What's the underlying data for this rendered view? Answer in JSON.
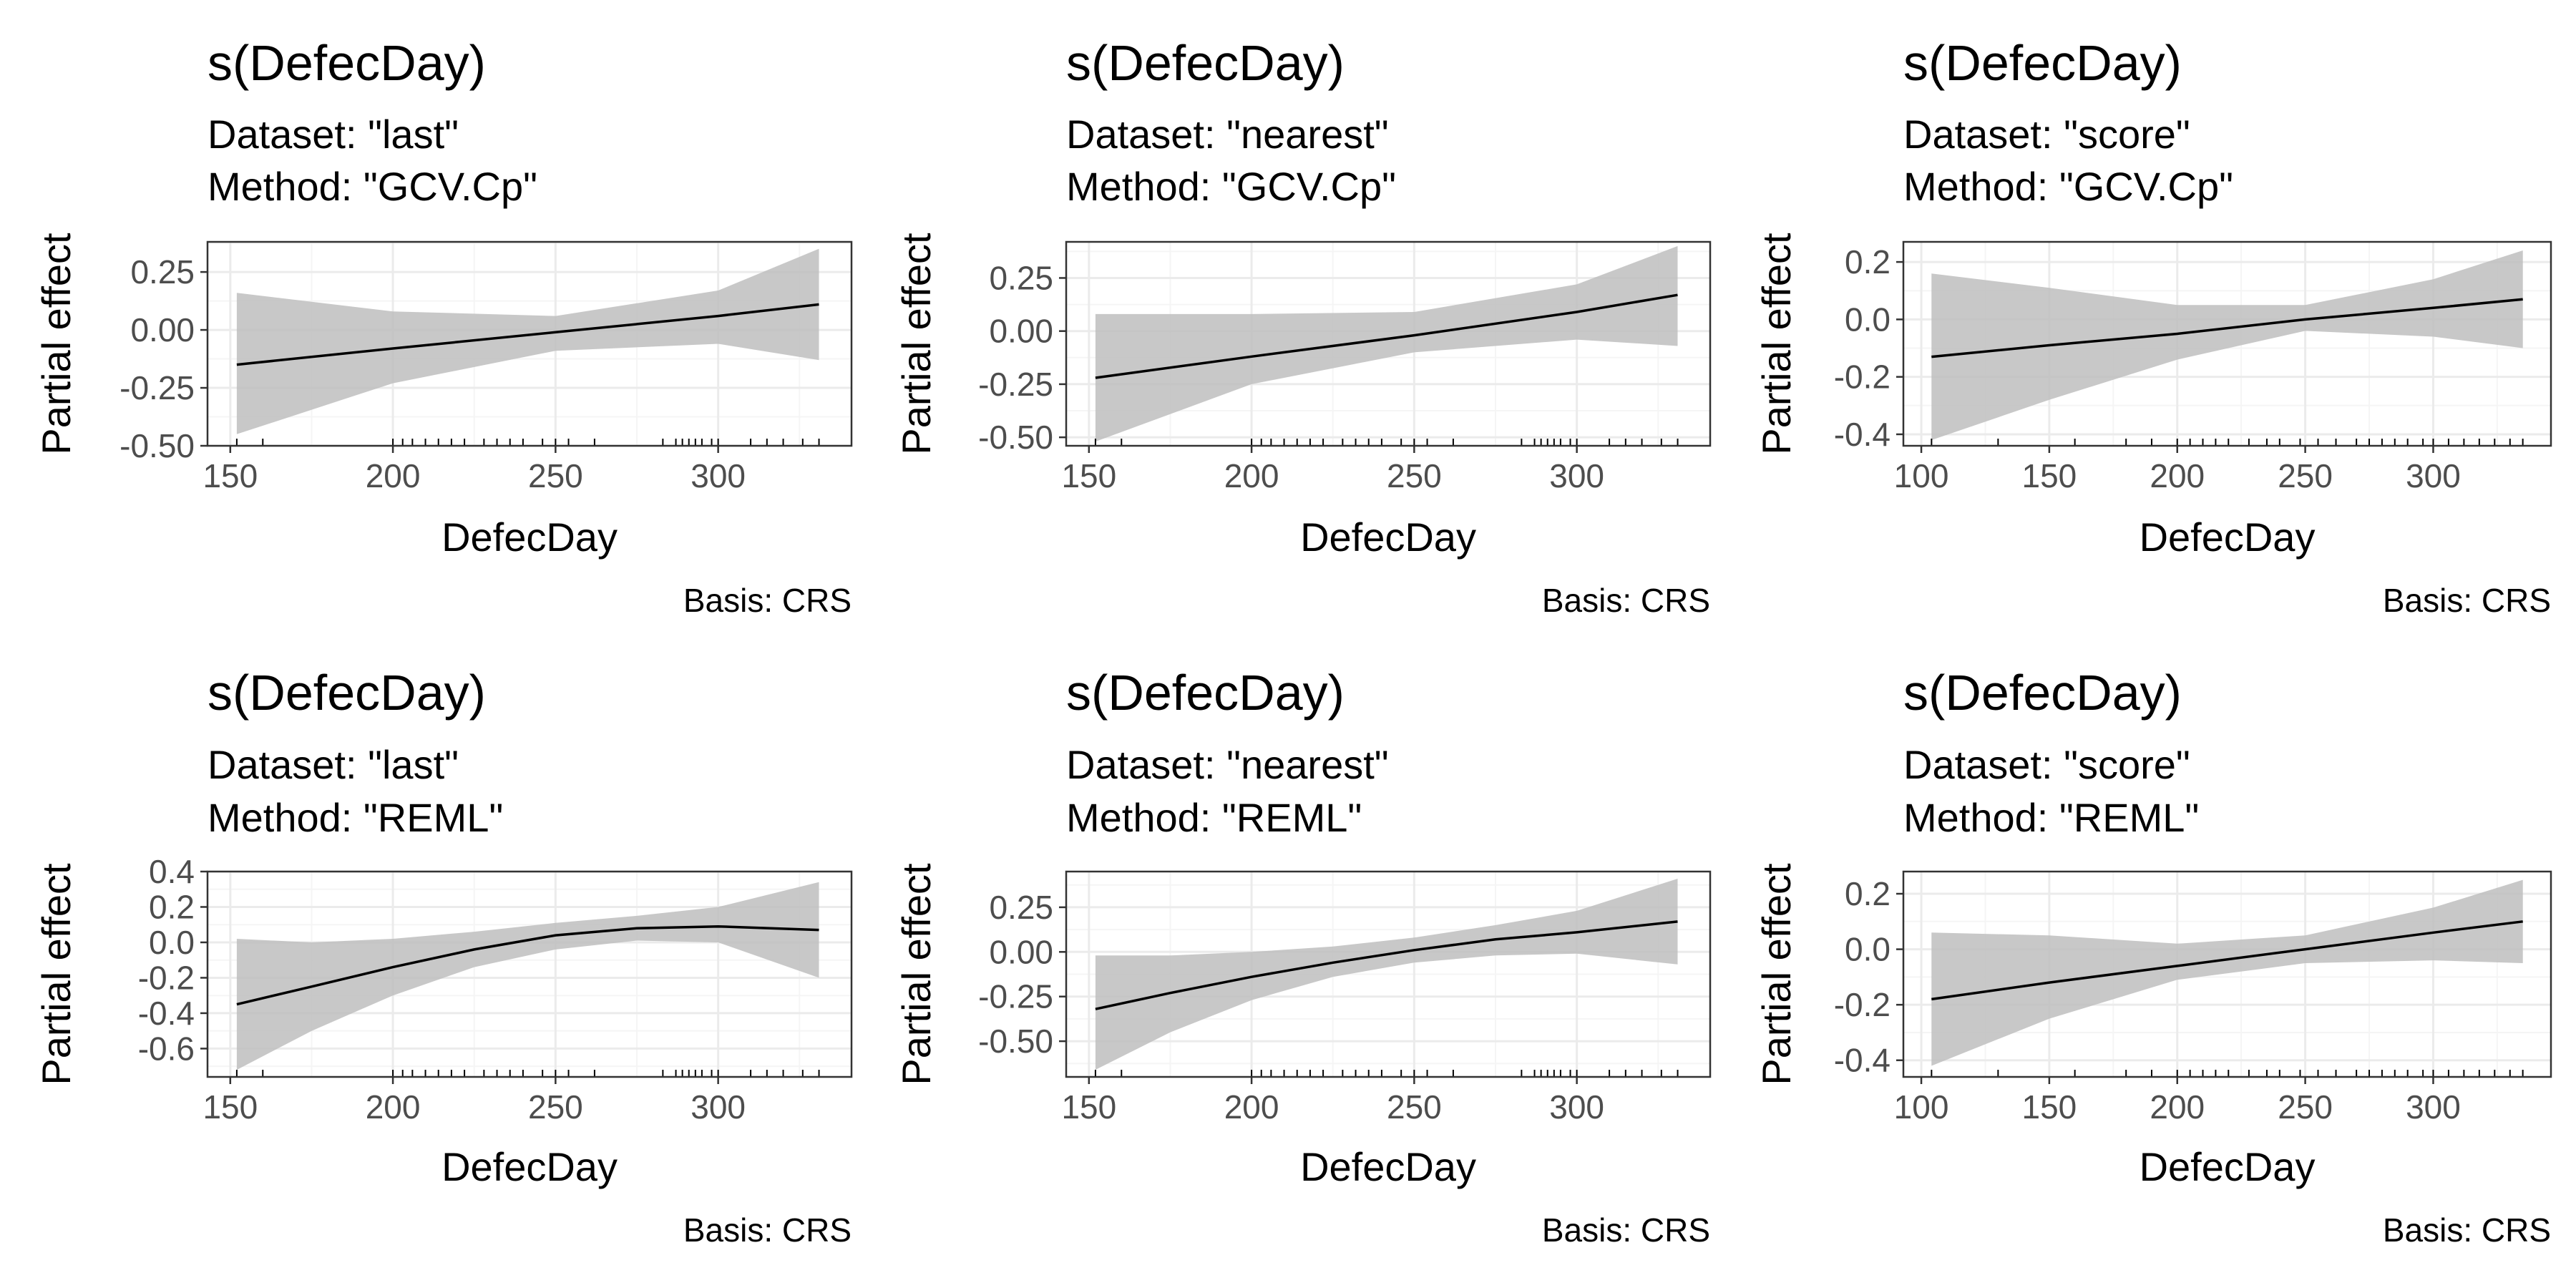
{
  "chart_data": [
    {
      "type": "line",
      "title": "s(DefecDay)",
      "subtitle": [
        "Dataset: \"last\"",
        "Method: \"GCV.Cp\""
      ],
      "xlabel": "DefecDay",
      "ylabel": "Partial effect",
      "caption": "Basis: CRS",
      "xlim": [
        143,
        341
      ],
      "ylim": [
        -0.5,
        0.38
      ],
      "xticks": [
        150,
        200,
        250,
        300
      ],
      "yticks": [
        -0.5,
        -0.25,
        0,
        0.25
      ],
      "ytick_labels": [
        "-0.50",
        "-0.25",
        "0.00",
        "0.25"
      ],
      "x": [
        152,
        200,
        250,
        300,
        331
      ],
      "y": [
        -0.15,
        -0.08,
        -0.01,
        0.06,
        0.11
      ],
      "lower": [
        -0.45,
        -0.23,
        -0.09,
        -0.06,
        -0.13
      ],
      "upper": [
        0.16,
        0.08,
        0.06,
        0.17,
        0.35
      ],
      "rug": [
        152,
        160,
        200,
        203,
        206,
        210,
        214,
        218,
        222,
        228,
        232,
        236,
        240,
        246,
        250,
        254,
        262,
        283,
        287,
        289,
        291,
        293,
        295,
        298,
        300,
        310,
        315,
        320,
        326,
        331
      ]
    },
    {
      "type": "line",
      "title": "s(DefecDay)",
      "subtitle": [
        "Dataset: \"nearest\"",
        "Method: \"GCV.Cp\""
      ],
      "xlabel": "DefecDay",
      "ylabel": "Partial effect",
      "caption": "Basis: CRS",
      "xlim": [
        143,
        341
      ],
      "ylim": [
        -0.54,
        0.42
      ],
      "xticks": [
        150,
        200,
        250,
        300
      ],
      "yticks": [
        -0.5,
        -0.25,
        0,
        0.25
      ],
      "ytick_labels": [
        "-0.50",
        "-0.25",
        "0.00",
        "0.25"
      ],
      "x": [
        152,
        200,
        250,
        300,
        331
      ],
      "y": [
        -0.22,
        -0.12,
        -0.02,
        0.09,
        0.17
      ],
      "lower": [
        -0.52,
        -0.25,
        -0.1,
        -0.04,
        -0.07
      ],
      "upper": [
        0.08,
        0.08,
        0.09,
        0.22,
        0.4
      ],
      "rug": [
        152,
        160,
        200,
        203,
        206,
        210,
        214,
        218,
        222,
        228,
        232,
        236,
        240,
        246,
        250,
        254,
        262,
        283,
        287,
        289,
        291,
        293,
        295,
        298,
        300,
        310,
        315,
        320,
        326,
        331
      ]
    },
    {
      "type": "line",
      "title": "s(DefecDay)",
      "subtitle": [
        "Dataset: \"score\"",
        "Method: \"GCV.Cp\""
      ],
      "xlabel": "DefecDay",
      "ylabel": "Partial effect",
      "caption": "Basis: CRS",
      "xlim": [
        93,
        346
      ],
      "ylim": [
        -0.44,
        0.27
      ],
      "xticks": [
        100,
        150,
        200,
        250,
        300
      ],
      "yticks": [
        -0.4,
        -0.2,
        0,
        0.2
      ],
      "ytick_labels": [
        "-0.4",
        "-0.2",
        "0.0",
        "0.2"
      ],
      "x": [
        104,
        150,
        200,
        250,
        300,
        335
      ],
      "y": [
        -0.13,
        -0.09,
        -0.05,
        0.0,
        0.04,
        0.07
      ],
      "lower": [
        -0.42,
        -0.28,
        -0.14,
        -0.04,
        -0.06,
        -0.1
      ],
      "upper": [
        0.16,
        0.11,
        0.05,
        0.05,
        0.14,
        0.24
      ],
      "rug": [
        104,
        130,
        160,
        180,
        190,
        200,
        205,
        210,
        215,
        220,
        228,
        235,
        240,
        248,
        255,
        262,
        270,
        275,
        280,
        285,
        290,
        296,
        300,
        306,
        312,
        318,
        324,
        330,
        335
      ]
    },
    {
      "type": "line",
      "title": "s(DefecDay)",
      "subtitle": [
        "Dataset: \"last\"",
        "Method: \"REML\""
      ],
      "xlabel": "DefecDay",
      "ylabel": "Partial effect",
      "caption": "Basis: CRS",
      "xlim": [
        143,
        341
      ],
      "ylim": [
        -0.76,
        0.4
      ],
      "xticks": [
        150,
        200,
        250,
        300
      ],
      "yticks": [
        -0.6,
        -0.4,
        -0.2,
        0,
        0.2,
        0.4
      ],
      "ytick_labels": [
        "-0.6",
        "-0.4",
        "-0.2",
        "0.0",
        "0.2",
        "0.4"
      ],
      "x": [
        152,
        175,
        200,
        225,
        250,
        275,
        300,
        331
      ],
      "y": [
        -0.35,
        -0.25,
        -0.14,
        -0.04,
        0.04,
        0.08,
        0.09,
        0.07
      ],
      "lower": [
        -0.72,
        -0.5,
        -0.3,
        -0.14,
        -0.04,
        0.01,
        0.0,
        -0.2
      ],
      "upper": [
        0.02,
        0.0,
        0.02,
        0.06,
        0.11,
        0.15,
        0.2,
        0.34
      ],
      "rug": [
        152,
        160,
        200,
        203,
        206,
        210,
        214,
        218,
        222,
        228,
        232,
        236,
        240,
        246,
        250,
        254,
        262,
        283,
        287,
        289,
        291,
        293,
        295,
        298,
        300,
        310,
        315,
        320,
        326,
        331
      ]
    },
    {
      "type": "line",
      "title": "s(DefecDay)",
      "subtitle": [
        "Dataset: \"nearest\"",
        "Method: \"REML\""
      ],
      "xlabel": "DefecDay",
      "ylabel": "Partial effect",
      "caption": "Basis: CRS",
      "xlim": [
        143,
        341
      ],
      "ylim": [
        -0.7,
        0.45
      ],
      "xticks": [
        150,
        200,
        250,
        300
      ],
      "yticks": [
        -0.5,
        -0.25,
        0,
        0.25
      ],
      "ytick_labels": [
        "-0.50",
        "-0.25",
        "0.00",
        "0.25"
      ],
      "x": [
        152,
        175,
        200,
        225,
        250,
        275,
        300,
        331
      ],
      "y": [
        -0.32,
        -0.23,
        -0.14,
        -0.06,
        0.01,
        0.07,
        0.11,
        0.17
      ],
      "lower": [
        -0.66,
        -0.45,
        -0.27,
        -0.14,
        -0.06,
        -0.02,
        -0.01,
        -0.07
      ],
      "upper": [
        -0.02,
        -0.02,
        0.0,
        0.03,
        0.08,
        0.15,
        0.23,
        0.41
      ],
      "rug": [
        152,
        160,
        200,
        203,
        206,
        210,
        214,
        218,
        222,
        228,
        232,
        236,
        240,
        246,
        250,
        254,
        262,
        283,
        287,
        289,
        291,
        293,
        295,
        298,
        300,
        310,
        315,
        320,
        326,
        331
      ]
    },
    {
      "type": "line",
      "title": "s(DefecDay)",
      "subtitle": [
        "Dataset: \"score\"",
        "Method: \"REML\""
      ],
      "xlabel": "DefecDay",
      "ylabel": "Partial effect",
      "caption": "Basis: CRS",
      "xlim": [
        93,
        346
      ],
      "ylim": [
        -0.46,
        0.28
      ],
      "xticks": [
        100,
        150,
        200,
        250,
        300
      ],
      "yticks": [
        -0.4,
        -0.2,
        0,
        0.2
      ],
      "ytick_labels": [
        "-0.4",
        "-0.2",
        "0.0",
        "0.2"
      ],
      "x": [
        104,
        150,
        200,
        250,
        300,
        335
      ],
      "y": [
        -0.18,
        -0.12,
        -0.06,
        0.0,
        0.06,
        0.1
      ],
      "lower": [
        -0.42,
        -0.25,
        -0.11,
        -0.05,
        -0.04,
        -0.05
      ],
      "upper": [
        0.06,
        0.05,
        0.02,
        0.05,
        0.15,
        0.25
      ],
      "rug": [
        104,
        130,
        160,
        180,
        190,
        200,
        205,
        210,
        215,
        220,
        228,
        235,
        240,
        248,
        255,
        262,
        270,
        275,
        280,
        285,
        290,
        296,
        300,
        306,
        312,
        318,
        324,
        330,
        335
      ]
    }
  ],
  "colors": {
    "ribbon": "#bebebe",
    "line": "#000000",
    "panel_border": "#333333",
    "grid_major": "#ebebeb",
    "grid_minor": "#f5f5f5",
    "tick_label": "#4d4d4d"
  }
}
